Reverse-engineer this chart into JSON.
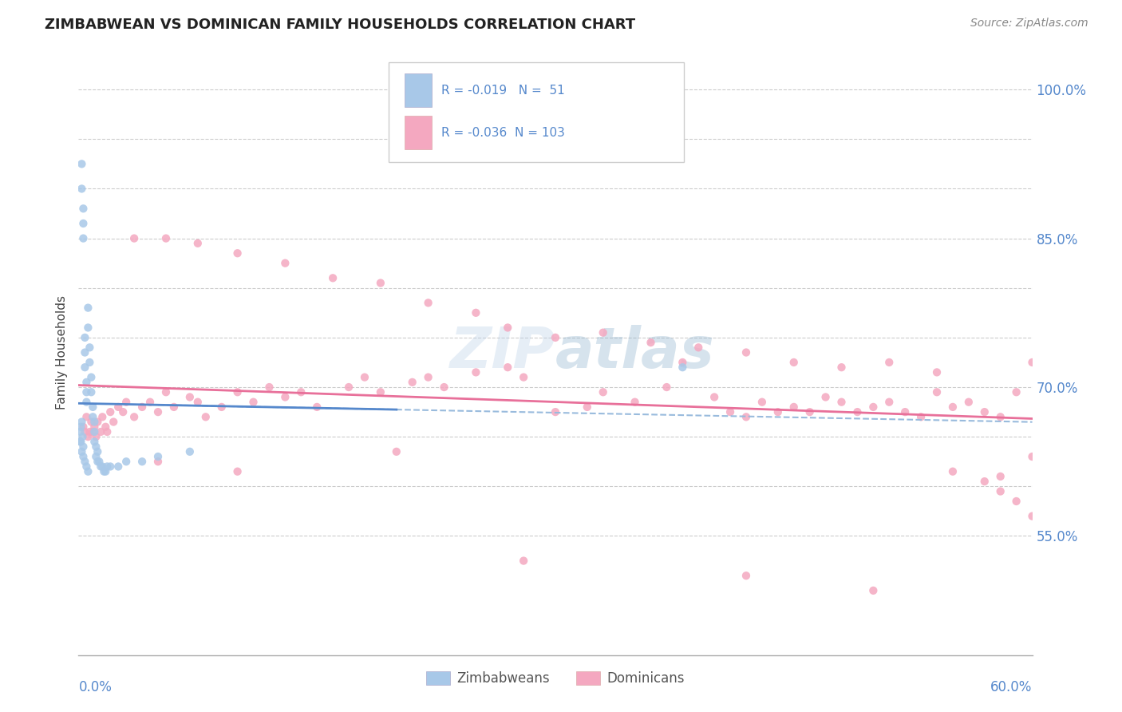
{
  "title": "ZIMBABWEAN VS DOMINICAN FAMILY HOUSEHOLDS CORRELATION CHART",
  "source": "Source: ZipAtlas.com",
  "xmin": 0.0,
  "xmax": 60.0,
  "ymin": 43.0,
  "ymax": 104.0,
  "zimbabwean_R": -0.019,
  "zimbabwean_N": 51,
  "dominican_R": -0.036,
  "dominican_N": 103,
  "zimbabwean_color": "#a8c8e8",
  "dominican_color": "#f4a8c0",
  "zimbabwean_line_color": "#5588cc",
  "dominican_line_color": "#e8709a",
  "dashed_line_color": "#99bbdd",
  "watermark_color": "#c8ddf0",
  "bg_color": "#ffffff",
  "grid_color": "#cccccc",
  "right_tick_color": "#5588cc",
  "title_color": "#222222",
  "source_color": "#888888",
  "ylabel_color": "#444444",
  "legend_label_zim": "Zimbabweans",
  "legend_label_dom": "Dominicans",
  "yticks_right": [
    55.0,
    70.0,
    85.0,
    100.0
  ],
  "ytick_labels_right": [
    "55.0%",
    "70.0%",
    "85.0%",
    "100.0%"
  ],
  "zimbabwean_x": [
    0.2,
    0.2,
    0.3,
    0.3,
    0.3,
    0.4,
    0.4,
    0.4,
    0.5,
    0.5,
    0.5,
    0.6,
    0.6,
    0.7,
    0.7,
    0.8,
    0.8,
    0.9,
    0.9,
    1.0,
    1.0,
    1.0,
    1.1,
    1.1,
    1.2,
    1.2,
    1.3,
    1.4,
    1.5,
    1.6,
    1.7,
    1.8,
    2.0,
    2.5,
    3.0,
    4.0,
    5.0,
    7.0,
    0.2,
    0.3,
    0.4,
    0.5,
    0.6,
    0.1,
    0.1,
    0.15,
    0.15,
    0.2,
    0.25,
    0.3,
    38.0
  ],
  "zimbabwean_y": [
    92.5,
    90.0,
    88.0,
    86.5,
    85.0,
    75.0,
    73.5,
    72.0,
    70.5,
    69.5,
    68.5,
    78.0,
    76.0,
    74.0,
    72.5,
    71.0,
    69.5,
    68.0,
    67.0,
    66.5,
    65.5,
    64.5,
    64.0,
    63.0,
    63.5,
    62.5,
    62.5,
    62.0,
    62.0,
    61.5,
    61.5,
    62.0,
    62.0,
    62.0,
    62.5,
    62.5,
    63.0,
    63.5,
    63.5,
    63.0,
    62.5,
    62.0,
    61.5,
    65.5,
    64.5,
    66.0,
    64.5,
    66.5,
    65.0,
    64.0,
    72.0
  ],
  "dominican_x": [
    0.3,
    0.4,
    0.5,
    0.6,
    0.7,
    0.8,
    0.9,
    1.0,
    1.1,
    1.2,
    1.4,
    1.5,
    1.7,
    1.8,
    2.0,
    2.2,
    2.5,
    2.8,
    3.0,
    3.5,
    4.0,
    4.5,
    5.0,
    5.5,
    6.0,
    7.0,
    7.5,
    8.0,
    9.0,
    10.0,
    11.0,
    12.0,
    13.0,
    14.0,
    15.0,
    17.0,
    18.0,
    19.0,
    21.0,
    22.0,
    23.0,
    25.0,
    27.0,
    28.0,
    30.0,
    32.0,
    33.0,
    35.0,
    37.0,
    38.0,
    40.0,
    41.0,
    42.0,
    43.0,
    44.0,
    45.0,
    46.0,
    47.0,
    48.0,
    49.0,
    50.0,
    51.0,
    52.0,
    53.0,
    54.0,
    55.0,
    56.0,
    57.0,
    58.0,
    59.0,
    60.0,
    3.5,
    5.5,
    7.5,
    10.0,
    13.0,
    16.0,
    19.0,
    22.0,
    25.0,
    27.0,
    30.0,
    33.0,
    36.0,
    39.0,
    42.0,
    45.0,
    48.0,
    51.0,
    54.0,
    55.0,
    57.0,
    58.0,
    59.0,
    60.0,
    28.0,
    42.0,
    50.0,
    58.0,
    60.0,
    5.0,
    10.0,
    20.0
  ],
  "dominican_y": [
    66.0,
    65.5,
    67.0,
    65.0,
    65.5,
    66.5,
    65.5,
    66.0,
    65.0,
    66.5,
    65.5,
    67.0,
    66.0,
    65.5,
    67.5,
    66.5,
    68.0,
    67.5,
    68.5,
    67.0,
    68.0,
    68.5,
    67.5,
    69.5,
    68.0,
    69.0,
    68.5,
    67.0,
    68.0,
    69.5,
    68.5,
    70.0,
    69.0,
    69.5,
    68.0,
    70.0,
    71.0,
    69.5,
    70.5,
    71.0,
    70.0,
    71.5,
    72.0,
    71.0,
    67.5,
    68.0,
    69.5,
    68.5,
    70.0,
    72.5,
    69.0,
    67.5,
    67.0,
    68.5,
    67.5,
    68.0,
    67.5,
    69.0,
    68.5,
    67.5,
    68.0,
    68.5,
    67.5,
    67.0,
    69.5,
    68.0,
    68.5,
    67.5,
    67.0,
    69.5,
    72.5,
    85.0,
    85.0,
    84.5,
    83.5,
    82.5,
    81.0,
    80.5,
    78.5,
    77.5,
    76.0,
    75.0,
    75.5,
    74.5,
    74.0,
    73.5,
    72.5,
    72.0,
    72.5,
    71.5,
    61.5,
    60.5,
    59.5,
    58.5,
    57.0,
    52.5,
    51.0,
    49.5,
    61.0,
    63.0,
    62.5,
    61.5,
    63.5
  ]
}
